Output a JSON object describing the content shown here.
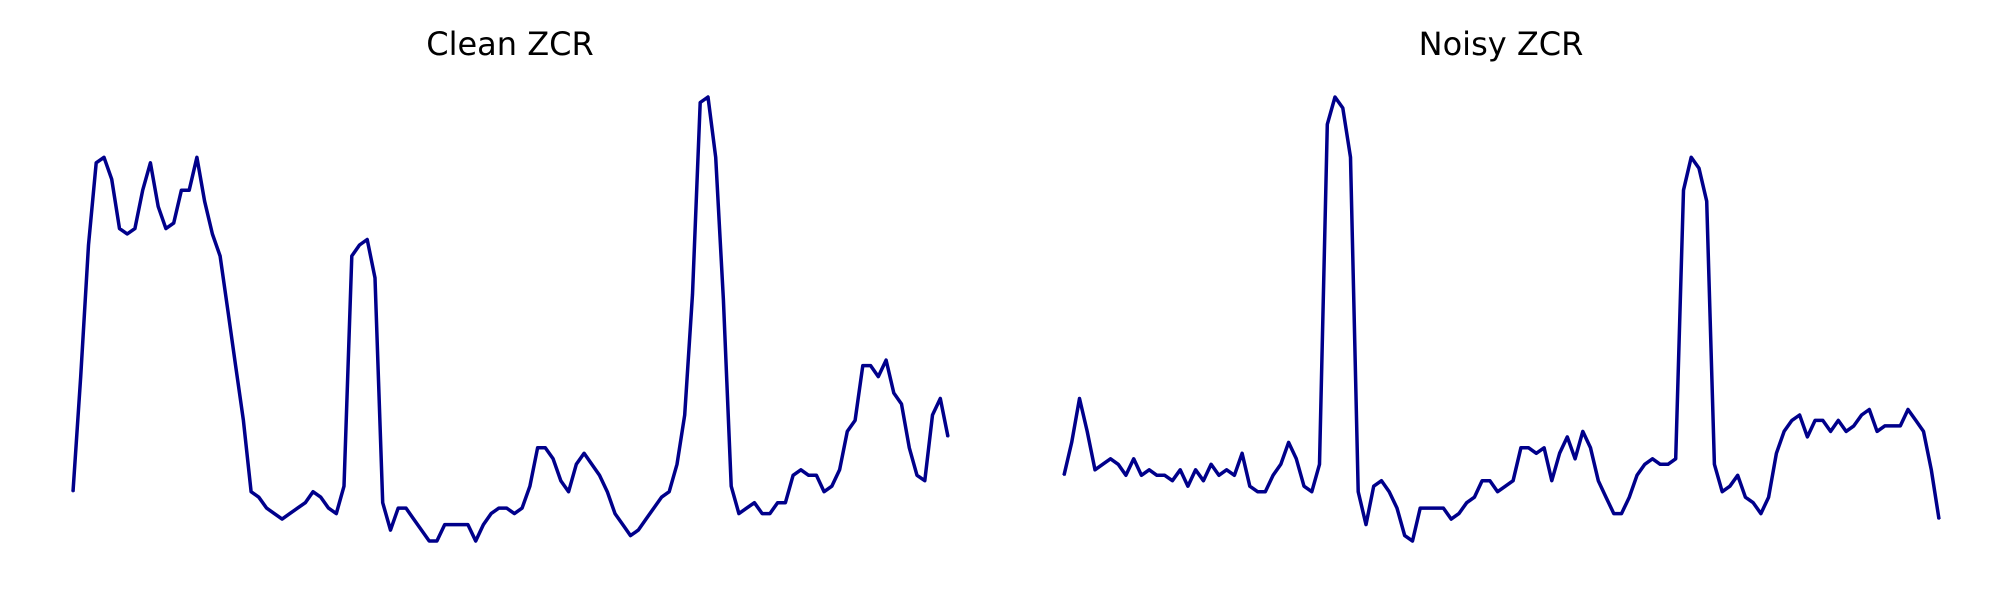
{
  "chart_data": [
    {
      "type": "line",
      "title": "Clean ZCR",
      "xlabel": "",
      "ylabel": "",
      "axes_visible": false,
      "grid": false,
      "xlim": [
        0,
        113
      ],
      "ylim": [
        0.04,
        0.87
      ],
      "series": [
        {
          "color": "#00008b",
          "x": [
            0,
            1,
            2,
            3,
            4,
            5,
            6,
            7,
            8,
            9,
            10,
            11,
            12,
            13,
            14,
            15,
            16,
            17,
            18,
            19,
            20,
            21,
            22,
            23,
            24,
            25,
            26,
            27,
            28,
            29,
            30,
            31,
            32,
            33,
            34,
            35,
            36,
            37,
            38,
            39,
            40,
            41,
            42,
            43,
            44,
            45,
            46,
            47,
            48,
            49,
            50,
            51,
            52,
            53,
            54,
            55,
            56,
            57,
            58,
            59,
            60,
            61,
            62,
            63,
            64,
            65,
            66,
            67,
            68,
            69,
            70,
            71,
            72,
            73,
            74,
            75,
            76,
            77,
            78,
            79,
            80,
            81,
            82,
            83,
            84,
            85,
            86,
            87,
            88,
            89,
            90,
            91,
            92,
            93,
            94,
            95,
            96,
            97,
            98,
            99,
            100,
            101,
            102,
            103,
            104,
            105,
            106,
            107,
            108,
            109,
            110,
            111,
            112,
            113
          ],
          "values": [
            0.15,
            0.36,
            0.6,
            0.75,
            0.76,
            0.72,
            0.63,
            0.62,
            0.63,
            0.7,
            0.75,
            0.67,
            0.63,
            0.64,
            0.7,
            0.7,
            0.76,
            0.68,
            0.62,
            0.58,
            0.48,
            0.38,
            0.28,
            0.15,
            0.14,
            0.12,
            0.11,
            0.1,
            0.11,
            0.12,
            0.13,
            0.15,
            0.14,
            0.12,
            0.11,
            0.16,
            0.58,
            0.6,
            0.61,
            0.54,
            0.13,
            0.08,
            0.12,
            0.12,
            0.1,
            0.08,
            0.06,
            0.06,
            0.09,
            0.09,
            0.09,
            0.09,
            0.06,
            0.09,
            0.11,
            0.12,
            0.12,
            0.11,
            0.12,
            0.16,
            0.23,
            0.23,
            0.21,
            0.17,
            0.15,
            0.2,
            0.22,
            0.2,
            0.18,
            0.15,
            0.11,
            0.09,
            0.07,
            0.08,
            0.1,
            0.12,
            0.14,
            0.15,
            0.2,
            0.29,
            0.51,
            0.86,
            0.87,
            0.76,
            0.5,
            0.16,
            0.11,
            0.12,
            0.13,
            0.11,
            0.11,
            0.13,
            0.13,
            0.18,
            0.19,
            0.18,
            0.18,
            0.15,
            0.16,
            0.19,
            0.26,
            0.28,
            0.38,
            0.38,
            0.36,
            0.39,
            0.33,
            0.31,
            0.23,
            0.18,
            0.17,
            0.29,
            0.32,
            0.25
          ]
        }
      ]
    },
    {
      "type": "line",
      "title": "Noisy ZCR",
      "xlabel": "",
      "ylabel": "",
      "axes_visible": false,
      "grid": false,
      "xlim": [
        0,
        113
      ],
      "ylim": [
        0.04,
        0.87
      ],
      "series": [
        {
          "color": "#00008b",
          "x": [
            0,
            1,
            2,
            3,
            4,
            5,
            6,
            7,
            8,
            9,
            10,
            11,
            12,
            13,
            14,
            15,
            16,
            17,
            18,
            19,
            20,
            21,
            22,
            23,
            24,
            25,
            26,
            27,
            28,
            29,
            30,
            31,
            32,
            33,
            34,
            35,
            36,
            37,
            38,
            39,
            40,
            41,
            42,
            43,
            44,
            45,
            46,
            47,
            48,
            49,
            50,
            51,
            52,
            53,
            54,
            55,
            56,
            57,
            58,
            59,
            60,
            61,
            62,
            63,
            64,
            65,
            66,
            67,
            68,
            69,
            70,
            71,
            72,
            73,
            74,
            75,
            76,
            77,
            78,
            79,
            80,
            81,
            82,
            83,
            84,
            85,
            86,
            87,
            88,
            89,
            90,
            91,
            92,
            93,
            94,
            95,
            96,
            97,
            98,
            99,
            100,
            101,
            102,
            103,
            104,
            105,
            106,
            107,
            108,
            109,
            110,
            111,
            112,
            113
          ],
          "values": [
            0.18,
            0.24,
            0.32,
            0.26,
            0.19,
            0.2,
            0.21,
            0.2,
            0.18,
            0.21,
            0.18,
            0.19,
            0.18,
            0.18,
            0.17,
            0.19,
            0.16,
            0.19,
            0.17,
            0.2,
            0.18,
            0.19,
            0.18,
            0.22,
            0.16,
            0.15,
            0.15,
            0.18,
            0.2,
            0.24,
            0.21,
            0.16,
            0.15,
            0.2,
            0.82,
            0.87,
            0.85,
            0.76,
            0.15,
            0.09,
            0.16,
            0.17,
            0.15,
            0.12,
            0.07,
            0.06,
            0.12,
            0.12,
            0.12,
            0.12,
            0.1,
            0.11,
            0.13,
            0.14,
            0.17,
            0.17,
            0.15,
            0.16,
            0.17,
            0.23,
            0.23,
            0.22,
            0.23,
            0.17,
            0.22,
            0.25,
            0.21,
            0.26,
            0.23,
            0.17,
            0.14,
            0.11,
            0.11,
            0.14,
            0.18,
            0.2,
            0.21,
            0.2,
            0.2,
            0.21,
            0.7,
            0.76,
            0.74,
            0.68,
            0.2,
            0.15,
            0.16,
            0.18,
            0.14,
            0.13,
            0.11,
            0.14,
            0.22,
            0.26,
            0.28,
            0.29,
            0.25,
            0.28,
            0.28,
            0.26,
            0.28,
            0.26,
            0.27,
            0.29,
            0.3,
            0.26,
            0.27,
            0.27,
            0.27,
            0.3,
            0.28,
            0.26,
            0.19,
            0.1
          ]
        }
      ]
    }
  ]
}
